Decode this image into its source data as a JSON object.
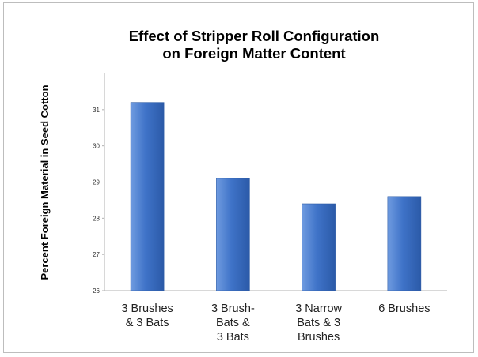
{
  "chart_data": {
    "type": "bar",
    "title": [
      "Effect of Stripper Roll Configuration",
      "on Foreign Matter Content"
    ],
    "xlabel": "",
    "ylabel": "Percent Foreign Material in Seed Cotton",
    "categories": [
      [
        "3 Brushes",
        "& 3 Bats"
      ],
      [
        "3 Brush-",
        "Bats &",
        "3 Bats"
      ],
      [
        "3 Narrow",
        "Bats & 3",
        "Brushes"
      ],
      [
        "6 Brushes"
      ]
    ],
    "values": [
      31.2,
      29.1,
      28.4,
      28.6
    ],
    "ylim": [
      26,
      32
    ],
    "yticks": [
      "26",
      "27",
      "28",
      "29",
      "30",
      "31"
    ],
    "grid": false,
    "legend": "none",
    "colors": {
      "bar_light": "#6f9be0",
      "bar_mid": "#3f73c8",
      "bar_dark": "#2b5aa8",
      "axis": "#b0b0b0"
    }
  }
}
